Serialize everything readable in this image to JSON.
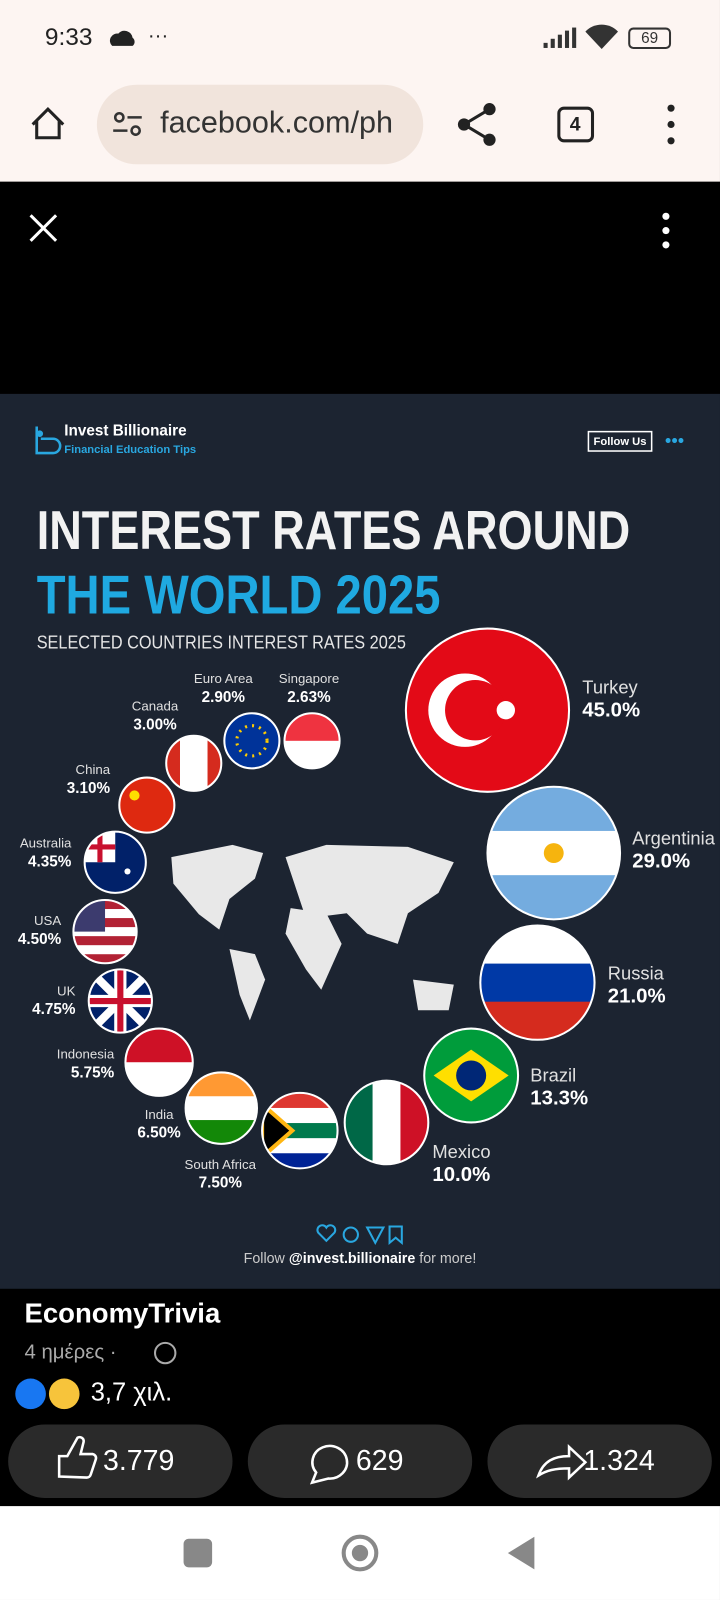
{
  "status_bar": {
    "time": "9:33",
    "battery": "69"
  },
  "browser": {
    "url": "facebook.com/ph",
    "tabs": "4"
  },
  "infographic": {
    "brand": "Invest Billionaire",
    "tagline": "Financial Education Tips",
    "follow_button": "Follow Us",
    "title_line1": "INTEREST RATES AROUND",
    "title_line2": "THE WORLD 2025",
    "subtitle": "SELECTED COUNTRIES INTEREST RATES 2025",
    "countries": [
      {
        "name": "Turkey",
        "rate": "45.0%"
      },
      {
        "name": "Argentinia",
        "rate": "29.0%"
      },
      {
        "name": "Russia",
        "rate": "21.0%"
      },
      {
        "name": "Brazil",
        "rate": "13.3%"
      },
      {
        "name": "Mexico",
        "rate": "10.0%"
      },
      {
        "name": "South Africa",
        "rate": "7.50%"
      },
      {
        "name": "India",
        "rate": "6.50%"
      },
      {
        "name": "Indonesia",
        "rate": "5.75%"
      },
      {
        "name": "UK",
        "rate": "4.75%"
      },
      {
        "name": "USA",
        "rate": "4.50%"
      },
      {
        "name": "Australia",
        "rate": "4.35%"
      },
      {
        "name": "China",
        "rate": "3.10%"
      },
      {
        "name": "Canada",
        "rate": "3.00%"
      },
      {
        "name": "Euro Area",
        "rate": "2.90%"
      },
      {
        "name": "Singapore",
        "rate": "2.63%"
      }
    ],
    "footer": {
      "prefix": "Follow",
      "handle": "@invest.billionaire",
      "suffix": "for more!"
    }
  },
  "post": {
    "author": "EconomyTrivia",
    "time": "4 ημέρες ·",
    "reactions": "3,7 χιλ.",
    "likes": "3.779",
    "comments": "629",
    "shares": "1.324"
  }
}
